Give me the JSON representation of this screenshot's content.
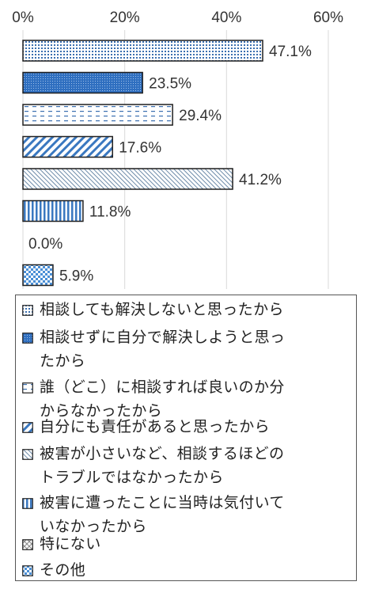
{
  "chart_data": {
    "type": "bar",
    "orientation": "horizontal",
    "xlim": [
      0,
      60
    ],
    "x_ticks": [
      "0%",
      "20%",
      "40%",
      "60%"
    ],
    "grid": true,
    "legend_position": "bottom",
    "series": [
      {
        "name": "相談しても解決しないと思ったから",
        "value": 47.1,
        "label": "47.1%",
        "pattern": "dots",
        "color": "#3a6fb0"
      },
      {
        "name": "相談せずに自分で解決しようと思ったから",
        "value": 23.5,
        "label": "23.5%",
        "pattern": "dense",
        "color": "#2f6fc0"
      },
      {
        "name": "誰（どこ）に相談すれば良いのか分からなかったから",
        "value": 29.4,
        "label": "29.4%",
        "pattern": "dashes",
        "color": "#3a6fb0"
      },
      {
        "name": "自分にも責任があると思ったから",
        "value": 17.6,
        "label": "17.6%",
        "pattern": "diagonal",
        "color": "#3a78c0"
      },
      {
        "name": "被害が小さいなど、相談するほどのトラブルではなかったから",
        "value": 41.2,
        "label": "41.2%",
        "pattern": "fine-diagonal",
        "color": "#6c8aa8"
      },
      {
        "name": "被害に遭ったことに当時は気付いていなかったから",
        "value": 11.8,
        "label": "11.8%",
        "pattern": "vertical",
        "color": "#3a78c0"
      },
      {
        "name": "特にない",
        "value": 0.0,
        "label": "0.0%",
        "pattern": "cross",
        "color": "#888888"
      },
      {
        "name": "その他",
        "value": 5.9,
        "label": "5.9%",
        "pattern": "checker",
        "color": "#4a8fd6"
      }
    ]
  },
  "legend": {
    "items": [
      {
        "lines": [
          "相談しても解決しないと思ったから"
        ]
      },
      {
        "lines": [
          "相談せずに自分で解決しようと思っ",
          "たから"
        ]
      },
      {
        "lines": [
          "誰（どこ）に相談すれば良いのか分",
          "からなかったから"
        ]
      },
      {
        "lines": [
          "自分にも責任があると思ったから"
        ]
      },
      {
        "lines": [
          "被害が小さいなど、相談するほどの",
          "トラブルではなかったから"
        ]
      },
      {
        "lines": [
          "被害に遭ったことに当時は気付いて",
          "いなかったから"
        ]
      },
      {
        "lines": [
          "特にない"
        ]
      },
      {
        "lines": [
          "その他"
        ]
      }
    ]
  }
}
